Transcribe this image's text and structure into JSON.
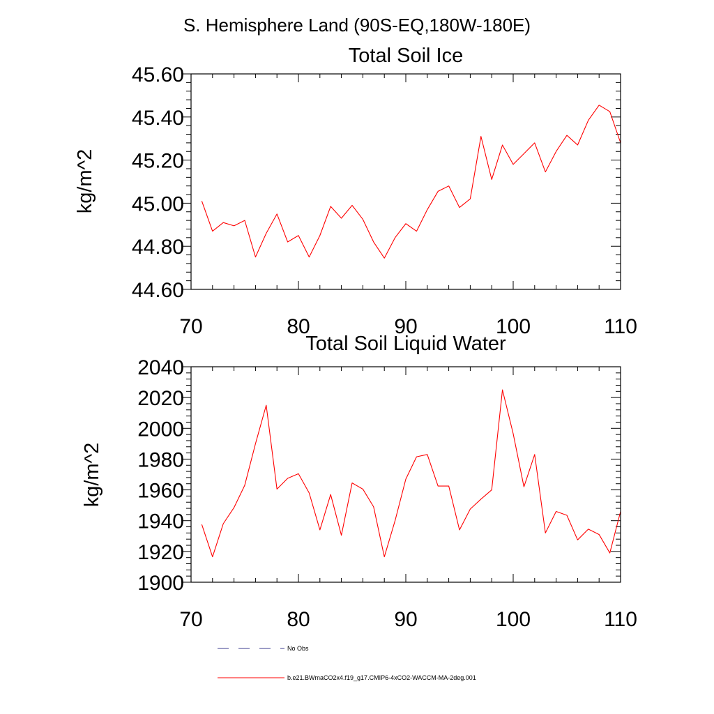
{
  "page_title": "S. Hemisphere Land (90S-EQ,180W-180E)",
  "colors": {
    "series": "#ff0000",
    "obs": "#3b3b8f",
    "axis": "#000000"
  },
  "legend": {
    "obs_label": "No Obs",
    "model_label": "b.e21.BWmaCO2x4.f19_g17.CMIP6-4xCO2-WACCM-MA-2deg.001"
  },
  "chart_data": [
    {
      "type": "line",
      "title": "Total Soil Ice",
      "xlabel": "",
      "ylabel": "kg/m^2",
      "xlim": [
        70,
        110
      ],
      "ylim": [
        44.6,
        45.6
      ],
      "x_ticks": [
        70,
        80,
        90,
        100,
        110
      ],
      "x_tick_labels": [
        "70",
        "80",
        "90",
        "100",
        "110"
      ],
      "y_ticks": [
        44.6,
        44.8,
        45.0,
        45.2,
        45.4,
        45.6
      ],
      "y_tick_labels": [
        "44.60",
        "44.80",
        "45.00",
        "45.20",
        "45.40",
        "45.60"
      ],
      "grid": false,
      "x": [
        71,
        72,
        73,
        74,
        75,
        76,
        77,
        78,
        79,
        80,
        81,
        82,
        83,
        84,
        85,
        86,
        87,
        88,
        89,
        90,
        91,
        92,
        93,
        94,
        95,
        96,
        97,
        98,
        99,
        100,
        101,
        102,
        103,
        104,
        105,
        106,
        107,
        108,
        109,
        110
      ],
      "series": [
        {
          "name": "b.e21.BWmaCO2x4.f19_g17.CMIP6-4xCO2-WACCM-MA-2deg.001",
          "values": [
            45.01,
            44.87,
            44.91,
            44.895,
            44.92,
            44.75,
            44.86,
            44.95,
            44.82,
            44.85,
            44.75,
            44.85,
            44.985,
            44.93,
            44.99,
            44.925,
            44.82,
            44.745,
            44.84,
            44.905,
            44.87,
            44.97,
            45.055,
            45.08,
            44.98,
            45.02,
            45.31,
            45.11,
            45.27,
            45.18,
            45.23,
            45.28,
            45.145,
            45.24,
            45.315,
            45.27,
            45.385,
            45.455,
            45.425,
            45.28
          ]
        }
      ]
    },
    {
      "type": "line",
      "title": "Total Soil Liquid Water",
      "xlabel": "",
      "ylabel": "kg/m^2",
      "xlim": [
        70,
        110
      ],
      "ylim": [
        1900,
        2040
      ],
      "x_ticks": [
        70,
        80,
        90,
        100,
        110
      ],
      "x_tick_labels": [
        "70",
        "80",
        "90",
        "100",
        "110"
      ],
      "y_ticks": [
        1900,
        1920,
        1940,
        1960,
        1980,
        2000,
        2020,
        2040
      ],
      "y_tick_labels": [
        "1900",
        "1920",
        "1940",
        "1960",
        "1980",
        "2000",
        "2020",
        "2040"
      ],
      "grid": false,
      "x": [
        71,
        72,
        73,
        74,
        75,
        76,
        77,
        78,
        79,
        80,
        81,
        82,
        83,
        84,
        85,
        86,
        87,
        88,
        89,
        90,
        91,
        92,
        93,
        94,
        95,
        96,
        97,
        98,
        99,
        100,
        101,
        102,
        103,
        104,
        105,
        106,
        107,
        108,
        109,
        110
      ],
      "series": [
        {
          "name": "b.e21.BWmaCO2x4.f19_g17.CMIP6-4xCO2-WACCM-MA-2deg.001",
          "values": [
            1937.5,
            1916.5,
            1938,
            1948.5,
            1963,
            1990,
            2015,
            1960.5,
            1967.5,
            1970.5,
            1958,
            1934,
            1957,
            1930.5,
            1964.5,
            1960.5,
            1949,
            1916.5,
            1940,
            1967,
            1981.5,
            1983,
            1962.5,
            1962.5,
            1934,
            1947.5,
            1954,
            1960,
            2025,
            1996.5,
            1962,
            1983,
            1932,
            1946,
            1943.5,
            1927.5,
            1934.5,
            1931,
            1919,
            1946
          ]
        }
      ]
    }
  ]
}
